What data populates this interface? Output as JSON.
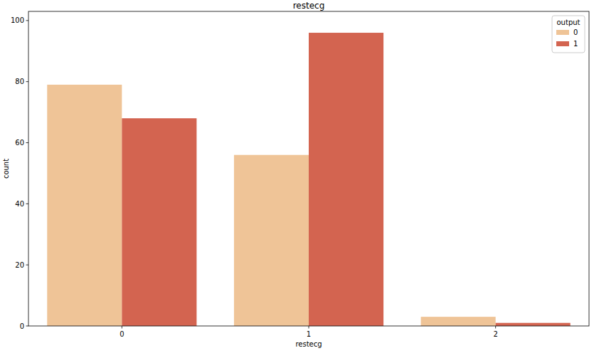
{
  "chart_data": {
    "type": "bar",
    "title": "restecg",
    "x_label": "restecg",
    "y_label": "count",
    "categories": [
      "0",
      "1",
      "2"
    ],
    "legend_title": "output",
    "legend": "upper right",
    "series": [
      {
        "name": "0",
        "color": "#efc497",
        "values": [
          79,
          56,
          3
        ]
      },
      {
        "name": "1",
        "color": "#d36450",
        "values": [
          68,
          96,
          1
        ]
      }
    ],
    "ylim": [
      0,
      103
    ],
    "yticks": [
      0,
      20,
      40,
      60,
      80,
      100
    ],
    "grid": false
  }
}
